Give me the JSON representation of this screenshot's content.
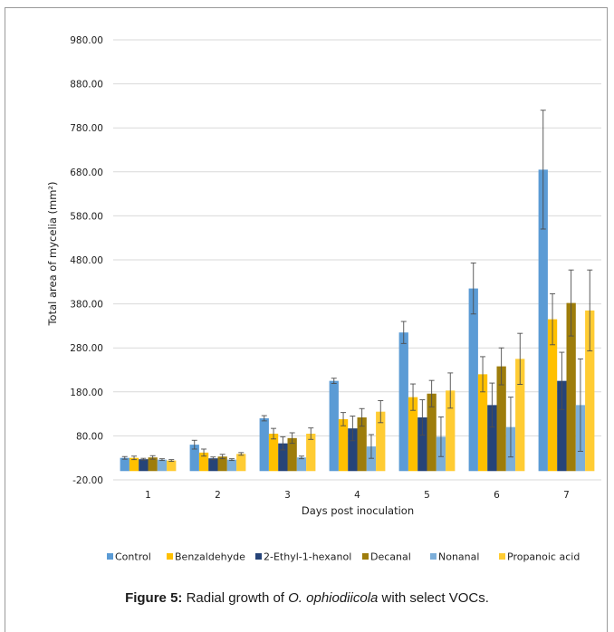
{
  "chart_data": {
    "type": "bar",
    "xlabel": "Days post inoculation",
    "ylabel": "Total area of mycelia (mm²)",
    "ylim": [
      -20,
      980
    ],
    "yticks": [
      -20,
      80,
      180,
      280,
      380,
      480,
      580,
      680,
      780,
      880,
      980
    ],
    "ytick_labels": [
      "-20.00",
      "80.00",
      "180.00",
      "280.00",
      "380.00",
      "480.00",
      "580.00",
      "680.00",
      "780.00",
      "880.00",
      "980.00"
    ],
    "grid": true,
    "legend_position": "bottom",
    "categories": [
      "1",
      "2",
      "3",
      "4",
      "5",
      "6",
      "7"
    ],
    "series": [
      {
        "name": "Control",
        "color": "#5b9bd5",
        "values": [
          30,
          60,
          120,
          205,
          315,
          415,
          685
        ],
        "errors": [
          3,
          10,
          6,
          6,
          25,
          58,
          135
        ]
      },
      {
        "name": "Benzaldehyde",
        "color": "#ffc000",
        "values": [
          30,
          42,
          85,
          118,
          168,
          220,
          345
        ],
        "errors": [
          4,
          8,
          12,
          15,
          30,
          40,
          58
        ]
      },
      {
        "name": "2-Ethyl-1-hexanol",
        "color": "#264478",
        "values": [
          27,
          29,
          63,
          97,
          122,
          150,
          205
        ],
        "errors": [
          2,
          3,
          15,
          28,
          40,
          50,
          65
        ]
      },
      {
        "name": "Decanal",
        "color": "#9e7d0b",
        "values": [
          31,
          33,
          75,
          122,
          176,
          238,
          382
        ],
        "errors": [
          4,
          5,
          12,
          20,
          30,
          42,
          75
        ]
      },
      {
        "name": "Nonanal",
        "color": "#7caed9",
        "values": [
          26,
          26,
          31,
          56,
          78,
          100,
          150
        ],
        "errors": [
          2,
          2,
          3,
          27,
          45,
          68,
          105
        ]
      },
      {
        "name": "Propanoic acid",
        "color": "#ffcc33",
        "values": [
          24,
          39,
          85,
          135,
          183,
          255,
          365
        ],
        "errors": [
          2,
          3,
          13,
          25,
          40,
          58,
          92
        ]
      }
    ]
  },
  "caption": {
    "label": "Figure 5:",
    "text_before": " Radial growth of ",
    "species": "O. ophiodiicola",
    "text_after": " with select VOCs."
  }
}
